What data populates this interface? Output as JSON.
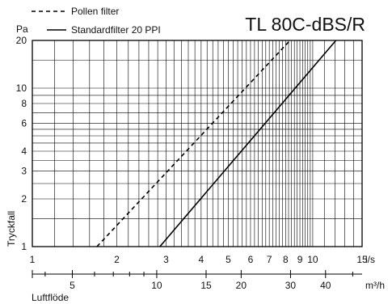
{
  "chart_data": {
    "type": "line",
    "title": "TL 80C-dBS/R",
    "y_unit": "Pa",
    "y_label": "Tryckfall",
    "x_unit": "l/s",
    "x2_unit": "m³/h",
    "x2_label": "Luftflöde",
    "x_scale": "log",
    "y_scale": "log",
    "grid": true,
    "legend_position": "top-left",
    "xlim": [
      1,
      15
    ],
    "ylim": [
      1,
      20
    ],
    "x_ticks": [
      1,
      2,
      3,
      4,
      5,
      6,
      7,
      8,
      9,
      10,
      15
    ],
    "y_ticks": [
      1,
      2,
      3,
      4,
      6,
      8,
      10,
      20
    ],
    "x2_ticks": [
      5,
      10,
      15,
      20,
      30,
      40
    ],
    "series": [
      {
        "name": "Pollen filter",
        "style": "dashed",
        "x": [
          1.7,
          8.3
        ],
        "y": [
          1,
          20
        ]
      },
      {
        "name": "Standardfilter 20 PPI",
        "style": "solid",
        "x": [
          2.85,
          12.1
        ],
        "y": [
          1,
          20
        ]
      }
    ]
  }
}
